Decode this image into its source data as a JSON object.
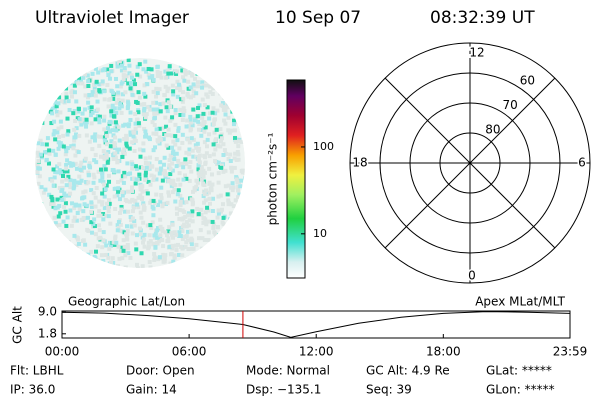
{
  "header": {
    "title": "Ultraviolet Imager",
    "date": "10 Sep 07",
    "time": "08:32:39 UT"
  },
  "colorbar": {
    "label": "photon cm⁻²s⁻¹",
    "lim": [
      3.1,
      590
    ],
    "ticks": [
      10,
      100
    ],
    "log": true
  },
  "polar": {
    "mlt_labels": [
      "12",
      "6",
      "0",
      "18"
    ],
    "mlat_lim": [
      90,
      50
    ],
    "mlat_labels": [
      80,
      70,
      60
    ]
  },
  "chart_data": {
    "type": "line",
    "y_label": "GC Alt",
    "annotations": [
      "Geographic Lat/Lon",
      "Apex MLat/MLT"
    ],
    "x": [
      0,
      2,
      4,
      6,
      8,
      8.54,
      10,
      10.8,
      12,
      14,
      16,
      18,
      20,
      22,
      23.98
    ],
    "values": [
      9.0,
      8.7,
      7.9,
      6.8,
      5.3,
      4.9,
      2.4,
      0.6,
      2.5,
      5.3,
      7.3,
      8.6,
      9.2,
      9.0,
      8.6
    ],
    "color": "#000000",
    "current_x": 8.54,
    "current_color": "#d00000",
    "xlim": [
      0,
      23.98
    ],
    "ylim": [
      0.4,
      9.4
    ],
    "xticks": [
      {
        "value": 0,
        "label": "00:00"
      },
      {
        "value": 6,
        "label": "06:00"
      },
      {
        "value": 12,
        "label": "12:00"
      },
      {
        "value": 18,
        "label": "18:00"
      },
      {
        "value": 23.98,
        "label": "23:59"
      }
    ],
    "yticks": [
      {
        "value": 1.8,
        "label": "1.8"
      },
      {
        "value": 9.0,
        "label": "9.0"
      }
    ]
  },
  "info": {
    "rows": [
      [
        "Flt: LBHL",
        "Door: Open",
        "Mode: Normal",
        "GC Alt: 4.9 Re",
        "GLat: *****"
      ],
      [
        "IP: 36.0",
        "Gain: 14",
        "Dsp: −135.1",
        "Seq: 39",
        "GLon: *****"
      ]
    ]
  }
}
